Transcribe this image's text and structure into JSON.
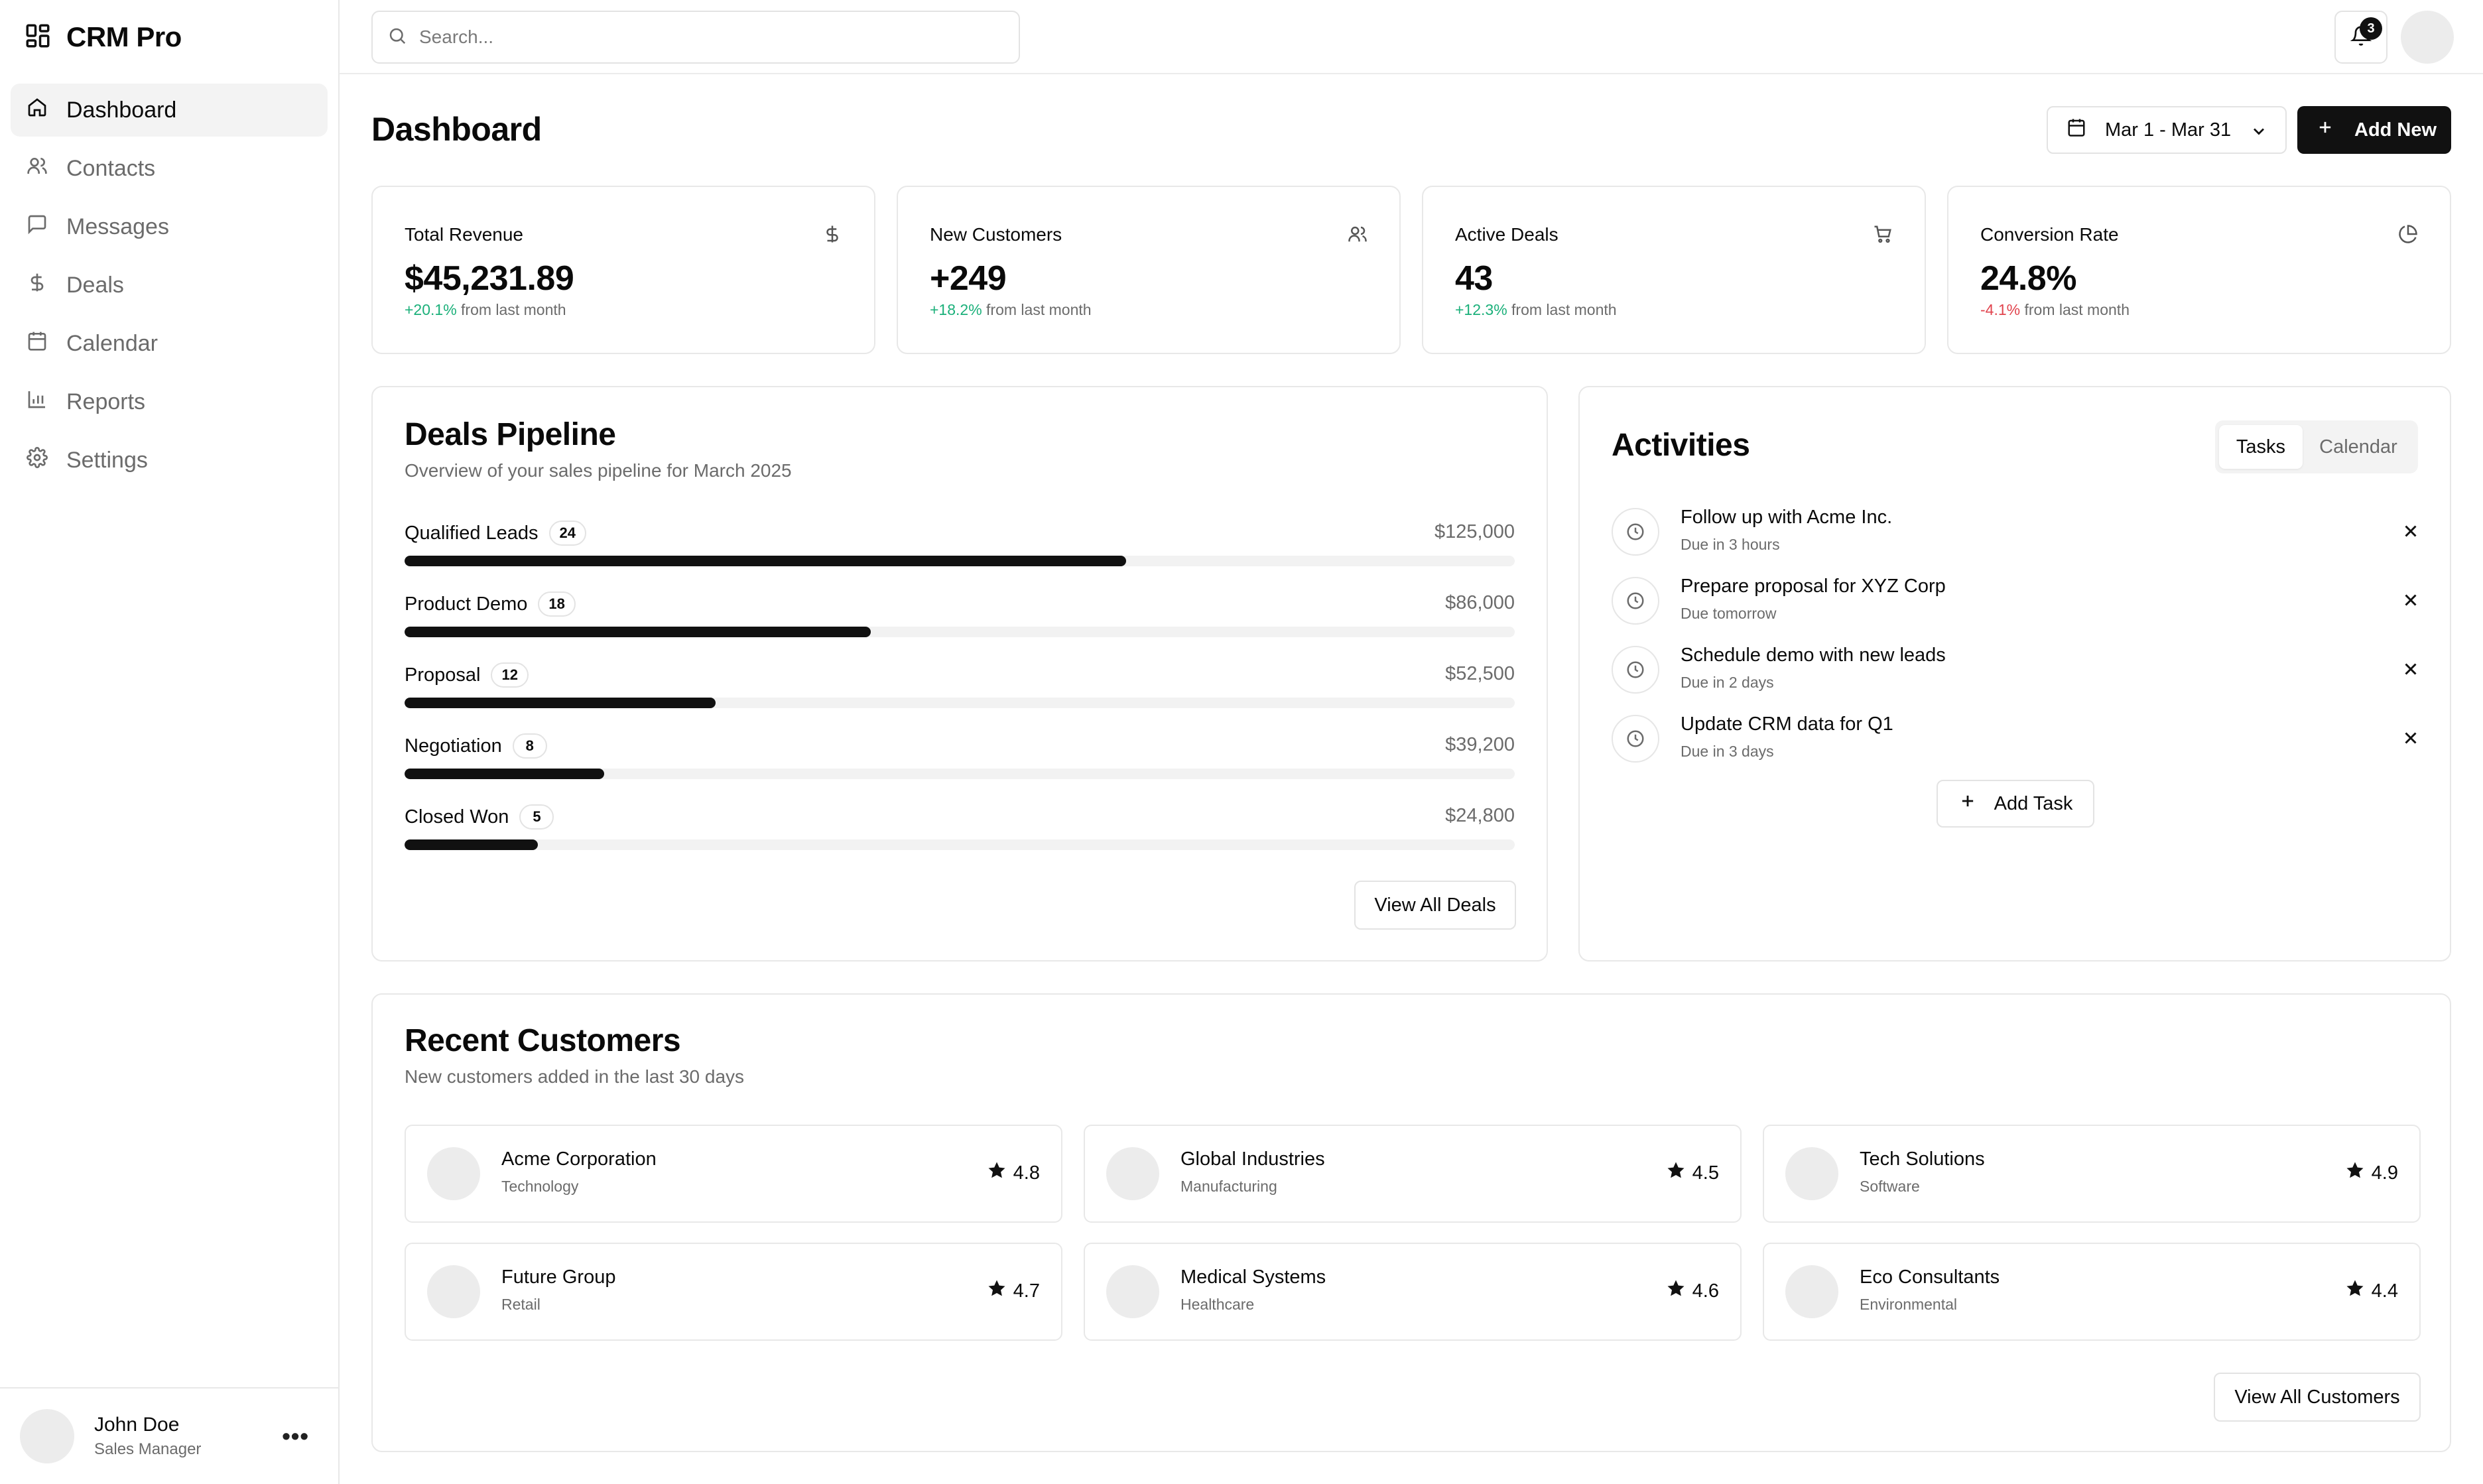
{
  "app": {
    "name": "CRM Pro"
  },
  "sidebar": {
    "items": [
      {
        "label": "Dashboard",
        "icon": "home-icon",
        "active": true
      },
      {
        "label": "Contacts",
        "icon": "users-icon"
      },
      {
        "label": "Messages",
        "icon": "message-icon"
      },
      {
        "label": "Deals",
        "icon": "dollar-icon"
      },
      {
        "label": "Calendar",
        "icon": "calendar-icon"
      },
      {
        "label": "Reports",
        "icon": "bar-chart-icon"
      },
      {
        "label": "Settings",
        "icon": "gear-icon"
      }
    ],
    "user": {
      "name": "John Doe",
      "role": "Sales Manager",
      "more": "•••"
    }
  },
  "header": {
    "search_placeholder": "Search...",
    "notification_count": "3"
  },
  "main": {
    "title": "Dashboard",
    "date_range": "Mar 1 - Mar 31",
    "add_new_label": "Add New",
    "stats": [
      {
        "title": "Total Revenue",
        "value": "$45,231.89",
        "change": "+20.1%",
        "suffix": " from last month",
        "trend": "up",
        "icon": "dollar-icon"
      },
      {
        "title": "New Customers",
        "value": "+249",
        "change": "+18.2%",
        "suffix": " from last month",
        "trend": "up",
        "icon": "users-icon"
      },
      {
        "title": "Active Deals",
        "value": "43",
        "change": "+12.3%",
        "suffix": " from last month",
        "trend": "up",
        "icon": "cart-icon"
      },
      {
        "title": "Conversion Rate",
        "value": "24.8%",
        "change": "-4.1%",
        "suffix": " from last month",
        "trend": "down",
        "icon": "pie-chart-icon"
      }
    ],
    "pipeline": {
      "title": "Deals Pipeline",
      "subtitle": "Overview of your sales pipeline for March 2025",
      "stages": [
        {
          "name": "Qualified Leads",
          "count": "24",
          "amount": "$125,000",
          "progress": 0.65
        },
        {
          "name": "Product Demo",
          "count": "18",
          "amount": "$86,000",
          "progress": 0.42
        },
        {
          "name": "Proposal",
          "count": "12",
          "amount": "$52,500",
          "progress": 0.28
        },
        {
          "name": "Negotiation",
          "count": "8",
          "amount": "$39,200",
          "progress": 0.18
        },
        {
          "name": "Closed Won",
          "count": "5",
          "amount": "$24,800",
          "progress": 0.12
        }
      ],
      "view_all_label": "View All Deals"
    },
    "activities": {
      "title": "Activities",
      "tabs": [
        "Tasks",
        "Calendar"
      ],
      "active_tab": "Tasks",
      "tasks": [
        {
          "title": "Follow up with Acme Inc.",
          "due": "Due in 3 hours"
        },
        {
          "title": "Prepare proposal for XYZ Corp",
          "due": "Due tomorrow"
        },
        {
          "title": "Schedule demo with new leads",
          "due": "Due in 2 days"
        },
        {
          "title": "Update CRM data for Q1",
          "due": "Due in 3 days"
        }
      ],
      "add_task_label": "Add Task"
    },
    "customers": {
      "title": "Recent Customers",
      "subtitle": "New customers added in the last 30 days",
      "items": [
        {
          "name": "Acme Corporation",
          "industry": "Technology",
          "rating": "4.8"
        },
        {
          "name": "Global Industries",
          "industry": "Manufacturing",
          "rating": "4.5"
        },
        {
          "name": "Tech Solutions",
          "industry": "Software",
          "rating": "4.9"
        },
        {
          "name": "Future Group",
          "industry": "Retail",
          "rating": "4.7"
        },
        {
          "name": "Medical Systems",
          "industry": "Healthcare",
          "rating": "4.6"
        },
        {
          "name": "Eco Consultants",
          "industry": "Environmental",
          "rating": "4.4"
        }
      ],
      "view_all_label": "View All Customers"
    }
  },
  "colors": {
    "positive": "#1bb07a",
    "negative": "#e1444e",
    "primary": "#111111"
  }
}
